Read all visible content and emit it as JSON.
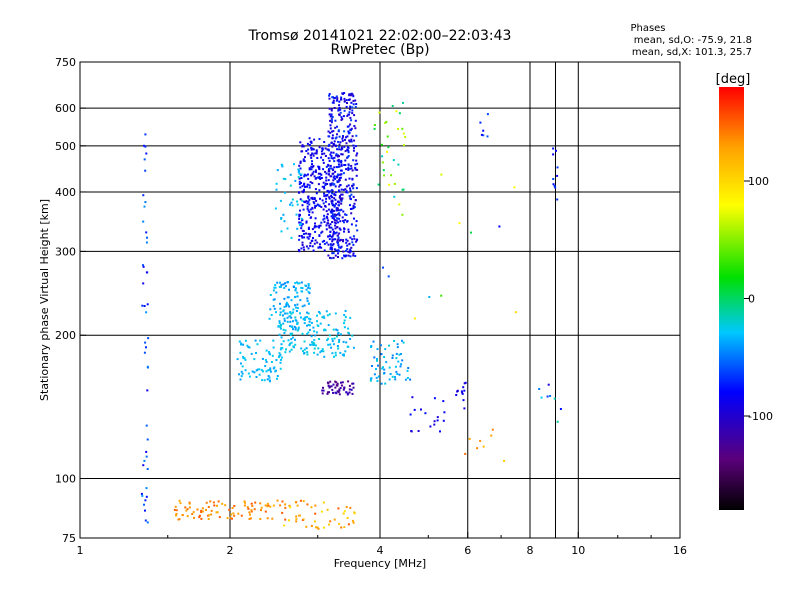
{
  "chart_data": {
    "type": "scatter",
    "title": "Tromsø 20141021 22:02:00–22:03:43",
    "subtitle": "RwPretec (Bp)",
    "phase_info": {
      "heading": "Phases",
      "line_o": "mean, sd,O: -75.9, 21.8",
      "line_x": "mean, sd,X: 101.3, 25.7"
    },
    "xlabel": "Frequency [MHz]",
    "ylabel": "Stationary phase Virtual Height [km]",
    "x_scale": "log",
    "y_scale": "log",
    "xlim": [
      1,
      16
    ],
    "ylim": [
      75,
      750
    ],
    "x_ticks": [
      1,
      2,
      4,
      6,
      8,
      10,
      16
    ],
    "x_tick_labels": [
      "1",
      "2",
      "4",
      "6",
      "8",
      "10",
      "16"
    ],
    "y_ticks": [
      75,
      100,
      200,
      300,
      400,
      500,
      600,
      750
    ],
    "y_tick_labels": [
      "75",
      "100",
      "200",
      "300",
      "400",
      "500",
      "600",
      "750"
    ],
    "grid_x": [
      2,
      4,
      6,
      8,
      9,
      10
    ],
    "grid_y": [
      100,
      200,
      300,
      400,
      500,
      600
    ],
    "colorbar": {
      "label": "[deg]",
      "range": [
        -180,
        180
      ],
      "ticks": [
        100,
        0,
        -100
      ],
      "tick_labels": [
        "100",
        "0",
        "-100"
      ],
      "colors": [
        "#000000",
        "#5a007a",
        "#0000ff",
        "#00c8ff",
        "#00e000",
        "#ffff00",
        "#ffa000",
        "#ff0000"
      ]
    },
    "clusters": [
      {
        "x": [
          2.75,
          3.35
        ],
        "y": [
          300,
          520
        ],
        "n": 420,
        "phase": [
          -100,
          -70
        ]
      },
      {
        "x": [
          3.15,
          3.6
        ],
        "y": [
          290,
          650
        ],
        "n": 380,
        "phase": [
          -110,
          -60
        ]
      },
      {
        "x": [
          2.45,
          2.8
        ],
        "y": [
          320,
          460
        ],
        "n": 40,
        "phase": [
          -40,
          -20
        ]
      },
      {
        "x": [
          2.4,
          2.9
        ],
        "y": [
          205,
          260
        ],
        "n": 110,
        "phase": [
          -45,
          -25
        ]
      },
      {
        "x": [
          2.5,
          3.55
        ],
        "y": [
          180,
          225
        ],
        "n": 160,
        "phase": [
          -40,
          -20
        ]
      },
      {
        "x": [
          2.05,
          2.55
        ],
        "y": [
          160,
          195
        ],
        "n": 80,
        "phase": [
          -40,
          -25
        ]
      },
      {
        "x": [
          3.05,
          3.55
        ],
        "y": [
          150,
          160
        ],
        "n": 50,
        "phase": [
          -140,
          -105
        ]
      },
      {
        "x": [
          3.8,
          4.6
        ],
        "y": [
          158,
          195
        ],
        "n": 60,
        "phase": [
          -50,
          -20
        ]
      },
      {
        "x": [
          4.6,
          5.4
        ],
        "y": [
          125,
          150
        ],
        "n": 18,
        "phase": [
          -100,
          -75
        ]
      },
      {
        "x": [
          5.6,
          6.0
        ],
        "y": [
          140,
          160
        ],
        "n": 12,
        "phase": [
          -100,
          -80
        ]
      },
      {
        "x": [
          3.9,
          4.5
        ],
        "y": [
          400,
          640
        ],
        "n": 30,
        "phase": [
          -20,
          80
        ]
      },
      {
        "x": [
          1.55,
          2.55
        ],
        "y": [
          82,
          90
        ],
        "n": 90,
        "phase": [
          120,
          155
        ]
      },
      {
        "x": [
          2.55,
          3.6
        ],
        "y": [
          78,
          90
        ],
        "n": 50,
        "phase": [
          90,
          160
        ]
      },
      {
        "x": [
          1.33,
          1.37
        ],
        "y": [
          80,
          610
        ],
        "n": 45,
        "phase": [
          -90,
          -40
        ]
      },
      {
        "x": [
          8.9,
          9.1
        ],
        "y": [
          380,
          500
        ],
        "n": 10,
        "phase": [
          -90,
          -60
        ]
      },
      {
        "x": [
          6.35,
          6.6
        ],
        "y": [
          520,
          610
        ],
        "n": 6,
        "phase": [
          -90,
          -50
        ]
      },
      {
        "x": [
          8.3,
          9.3
        ],
        "y": [
          130,
          160
        ],
        "n": 8,
        "phase": [
          -100,
          0
        ]
      },
      {
        "x": [
          5.9,
          7.2
        ],
        "y": [
          100,
          130
        ],
        "n": 8,
        "phase": [
          100,
          150
        ]
      },
      {
        "x": [
          4.0,
          7.5
        ],
        "y": [
          200,
          450
        ],
        "n": 14,
        "phase": [
          -80,
          100
        ]
      }
    ]
  }
}
